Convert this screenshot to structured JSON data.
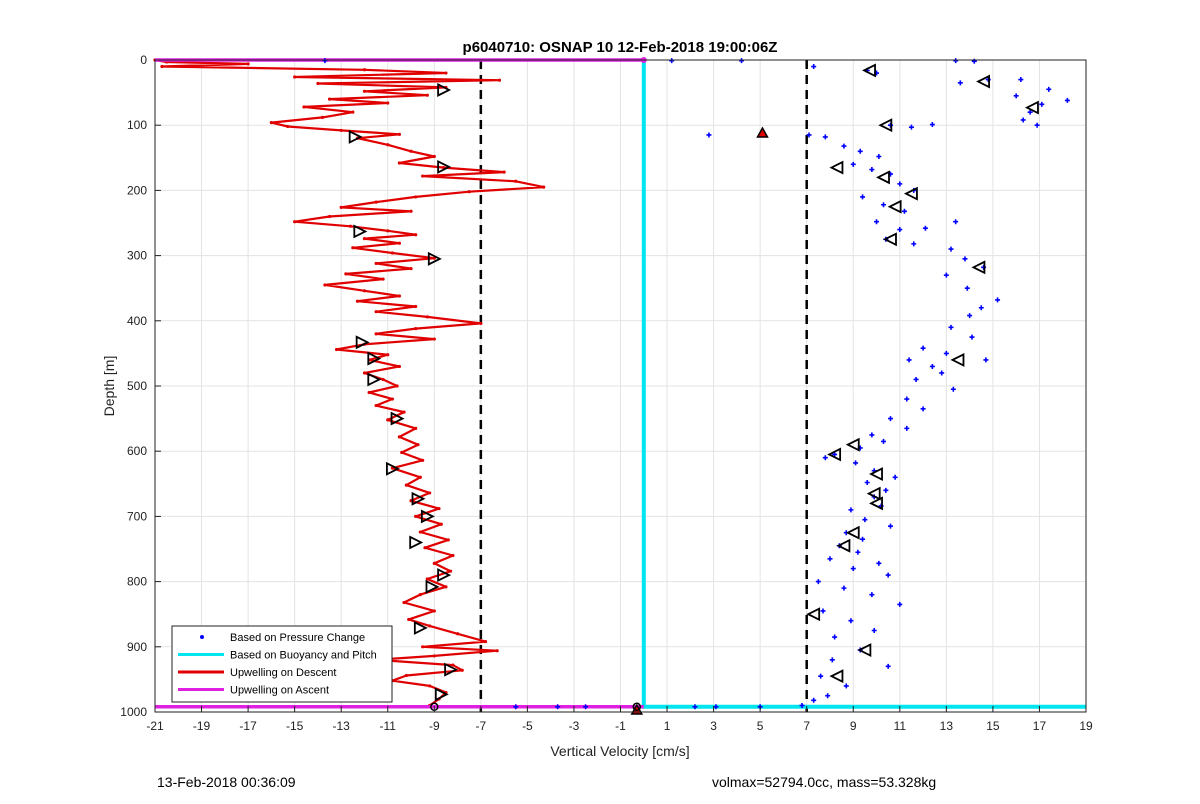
{
  "chart_data": {
    "type": "line",
    "title": "p6040710: OSNAP 10 12-Feb-2018 19:00:06Z",
    "xlabel": "Vertical Velocity [cm/s]",
    "ylabel": "Depth [m]",
    "xlim": [
      -21,
      19
    ],
    "ylim": [
      0,
      1000
    ],
    "y_reversed": true,
    "xticks": [
      -21,
      -19,
      -17,
      -15,
      -13,
      -11,
      -9,
      -7,
      -5,
      -3,
      -1,
      1,
      3,
      5,
      7,
      9,
      11,
      13,
      15,
      17,
      19
    ],
    "yticks": [
      0,
      100,
      200,
      300,
      400,
      500,
      600,
      700,
      800,
      900,
      1000
    ],
    "grid": true,
    "legend_position": "bottom-left",
    "reference_lines": [
      -7,
      7
    ],
    "series": [
      {
        "name": "Based on Pressure Change",
        "color": "#0000ff",
        "style": "dots",
        "points": [
          [
            -13.7,
            1
          ],
          [
            1.2,
            1
          ],
          [
            4.2,
            1
          ],
          [
            7.3,
            10
          ],
          [
            9.6,
            16
          ],
          [
            10.0,
            20
          ],
          [
            13.4,
            1
          ],
          [
            14.2,
            2
          ],
          [
            13.6,
            35
          ],
          [
            14.8,
            30
          ],
          [
            16.2,
            30
          ],
          [
            17.4,
            45
          ],
          [
            16.0,
            55
          ],
          [
            18.2,
            62
          ],
          [
            17.1,
            68
          ],
          [
            16.6,
            80
          ],
          [
            16.3,
            92
          ],
          [
            16.9,
            100
          ],
          [
            10.6,
            100
          ],
          [
            11.5,
            103
          ],
          [
            12.4,
            99
          ],
          [
            2.8,
            115
          ],
          [
            7.1,
            115
          ],
          [
            7.8,
            118
          ],
          [
            8.6,
            132
          ],
          [
            9.3,
            140
          ],
          [
            10.1,
            148
          ],
          [
            9.0,
            160
          ],
          [
            9.8,
            168
          ],
          [
            10.6,
            175
          ],
          [
            11.0,
            190
          ],
          [
            11.6,
            200
          ],
          [
            9.4,
            210
          ],
          [
            10.3,
            222
          ],
          [
            11.2,
            232
          ],
          [
            10.0,
            248
          ],
          [
            11.0,
            260
          ],
          [
            12.1,
            258
          ],
          [
            13.4,
            248
          ],
          [
            10.4,
            275
          ],
          [
            11.6,
            282
          ],
          [
            13.2,
            290
          ],
          [
            13.8,
            305
          ],
          [
            14.6,
            318
          ],
          [
            13.0,
            330
          ],
          [
            13.9,
            350
          ],
          [
            15.2,
            368
          ],
          [
            14.5,
            380
          ],
          [
            14.0,
            392
          ],
          [
            13.2,
            410
          ],
          [
            14.1,
            425
          ],
          [
            12.0,
            442
          ],
          [
            13.0,
            450
          ],
          [
            11.4,
            460
          ],
          [
            12.4,
            470
          ],
          [
            14.7,
            460
          ],
          [
            12.8,
            480
          ],
          [
            11.7,
            490
          ],
          [
            13.3,
            505
          ],
          [
            11.3,
            520
          ],
          [
            12.0,
            535
          ],
          [
            10.6,
            550
          ],
          [
            11.3,
            565
          ],
          [
            9.8,
            575
          ],
          [
            10.3,
            585
          ],
          [
            9.3,
            595
          ],
          [
            8.2,
            605
          ],
          [
            7.8,
            610
          ],
          [
            9.1,
            618
          ],
          [
            9.9,
            630
          ],
          [
            10.8,
            640
          ],
          [
            9.6,
            648
          ],
          [
            10.4,
            660
          ],
          [
            9.9,
            670
          ],
          [
            10.2,
            684
          ],
          [
            8.9,
            690
          ],
          [
            9.5,
            705
          ],
          [
            10.6,
            715
          ],
          [
            8.7,
            725
          ],
          [
            9.4,
            735
          ],
          [
            8.4,
            745
          ],
          [
            9.2,
            755
          ],
          [
            8.0,
            765
          ],
          [
            10.1,
            772
          ],
          [
            9.0,
            780
          ],
          [
            10.5,
            790
          ],
          [
            7.5,
            800
          ],
          [
            8.6,
            810
          ],
          [
            9.8,
            820
          ],
          [
            11.0,
            835
          ],
          [
            7.7,
            845
          ],
          [
            8.9,
            860
          ],
          [
            9.9,
            875
          ],
          [
            8.2,
            885
          ],
          [
            9.3,
            905
          ],
          [
            8.1,
            920
          ],
          [
            10.5,
            930
          ],
          [
            7.6,
            945
          ],
          [
            8.7,
            960
          ],
          [
            7.9,
            975
          ],
          [
            7.3,
            982
          ],
          [
            -5.5,
            992
          ],
          [
            -3.7,
            992
          ],
          [
            -2.5,
            992
          ],
          [
            2.2,
            992
          ],
          [
            3.1,
            992
          ],
          [
            5.0,
            992
          ],
          [
            6.8,
            990
          ]
        ]
      },
      {
        "name": "Based on Buoyancy and Pitch",
        "color": "#00e5ee",
        "style": "line",
        "points": [
          [
            0,
            0
          ],
          [
            0,
            992
          ],
          [
            19,
            992
          ]
        ]
      },
      {
        "name": "Upwelling on Descent",
        "color": "#e00000",
        "style": "line",
        "points": [
          [
            -21,
            0
          ],
          [
            -20.5,
            3
          ],
          [
            -17.0,
            6
          ],
          [
            -20.7,
            10
          ],
          [
            -12.0,
            15
          ],
          [
            -8.5,
            20
          ],
          [
            -15.0,
            26
          ],
          [
            -6.2,
            31
          ],
          [
            -14.0,
            36
          ],
          [
            -8.5,
            42
          ],
          [
            -12.0,
            48
          ],
          [
            -9.3,
            54
          ],
          [
            -13.5,
            60
          ],
          [
            -11.0,
            66
          ],
          [
            -14.6,
            72
          ],
          [
            -12.5,
            80
          ],
          [
            -13.8,
            88
          ],
          [
            -16.0,
            96
          ],
          [
            -15.3,
            102
          ],
          [
            -13.0,
            108
          ],
          [
            -10.5,
            114
          ],
          [
            -12.3,
            120
          ],
          [
            -11.0,
            130
          ],
          [
            -10.0,
            140
          ],
          [
            -9.0,
            148
          ],
          [
            -10.5,
            158
          ],
          [
            -8.6,
            165
          ],
          [
            -6.0,
            172
          ],
          [
            -9.5,
            178
          ],
          [
            -5.5,
            186
          ],
          [
            -4.3,
            195
          ],
          [
            -7.5,
            202
          ],
          [
            -9.8,
            210
          ],
          [
            -11.5,
            218
          ],
          [
            -13.0,
            226
          ],
          [
            -10.0,
            232
          ],
          [
            -13.5,
            240
          ],
          [
            -15.0,
            248
          ],
          [
            -12.6,
            255
          ],
          [
            -11.0,
            262
          ],
          [
            -9.8,
            268
          ],
          [
            -12.0,
            274
          ],
          [
            -10.5,
            281
          ],
          [
            -12.5,
            288
          ],
          [
            -10.8,
            296
          ],
          [
            -9.0,
            304
          ],
          [
            -11.5,
            312
          ],
          [
            -10.0,
            320
          ],
          [
            -12.8,
            328
          ],
          [
            -11.2,
            336
          ],
          [
            -13.7,
            345
          ],
          [
            -12.0,
            354
          ],
          [
            -10.5,
            362
          ],
          [
            -12.3,
            370
          ],
          [
            -9.8,
            378
          ],
          [
            -11.5,
            386
          ],
          [
            -9.3,
            394
          ],
          [
            -7.0,
            404
          ],
          [
            -9.8,
            412
          ],
          [
            -11.5,
            420
          ],
          [
            -9.0,
            428
          ],
          [
            -12.0,
            436
          ],
          [
            -13.2,
            444
          ],
          [
            -11.0,
            452
          ],
          [
            -11.8,
            460
          ],
          [
            -10.5,
            470
          ],
          [
            -12.0,
            480
          ],
          [
            -11.2,
            490
          ],
          [
            -10.6,
            500
          ],
          [
            -11.8,
            510
          ],
          [
            -10.8,
            520
          ],
          [
            -11.5,
            530
          ],
          [
            -10.3,
            540
          ],
          [
            -11.0,
            552
          ],
          [
            -9.8,
            565
          ],
          [
            -10.5,
            578
          ],
          [
            -9.7,
            590
          ],
          [
            -10.4,
            602
          ],
          [
            -9.5,
            614
          ],
          [
            -10.8,
            626
          ],
          [
            -9.6,
            640
          ],
          [
            -10.2,
            652
          ],
          [
            -9.2,
            664
          ],
          [
            -10.0,
            676
          ],
          [
            -8.8,
            688
          ],
          [
            -9.8,
            700
          ],
          [
            -8.7,
            712
          ],
          [
            -9.6,
            724
          ],
          [
            -8.4,
            736
          ],
          [
            -9.4,
            748
          ],
          [
            -8.2,
            760
          ],
          [
            -9.0,
            772
          ],
          [
            -8.3,
            784
          ],
          [
            -9.3,
            796
          ],
          [
            -8.5,
            808
          ],
          [
            -9.6,
            820
          ],
          [
            -10.3,
            832
          ],
          [
            -9.0,
            845
          ],
          [
            -10.1,
            858
          ],
          [
            -9.2,
            868
          ],
          [
            -8.0,
            880
          ],
          [
            -6.8,
            892
          ],
          [
            -9.5,
            900
          ],
          [
            -6.3,
            906
          ],
          [
            -9.0,
            914
          ],
          [
            -11.5,
            920
          ],
          [
            -8.2,
            928
          ],
          [
            -7.8,
            936
          ],
          [
            -10.2,
            944
          ],
          [
            -10.8,
            952
          ],
          [
            -9.2,
            960
          ],
          [
            -8.5,
            970
          ],
          [
            -8.8,
            980
          ],
          [
            -9.2,
            990
          ]
        ]
      },
      {
        "name": "Upwelling on Ascent",
        "color": "#e020e0",
        "style": "line",
        "points": [
          [
            -21,
            0
          ],
          [
            0,
            0
          ]
        ]
      }
    ],
    "ascent_markers": [
      [
        9.7,
        16
      ],
      [
        14.6,
        33
      ],
      [
        16.7,
        73
      ],
      [
        10.4,
        100
      ],
      [
        8.3,
        165
      ],
      [
        10.3,
        180
      ],
      [
        11.5,
        205
      ],
      [
        10.8,
        225
      ],
      [
        10.6,
        275
      ],
      [
        14.4,
        318
      ],
      [
        13.5,
        460
      ],
      [
        9.0,
        590
      ],
      [
        8.2,
        605
      ],
      [
        10.0,
        635
      ],
      [
        9.9,
        665
      ],
      [
        10.0,
        680
      ],
      [
        9.0,
        725
      ],
      [
        8.6,
        745
      ],
      [
        7.3,
        850
      ],
      [
        9.5,
        905
      ],
      [
        8.3,
        945
      ]
    ],
    "descent_markers": [
      [
        -8.6,
        46
      ],
      [
        -12.4,
        118
      ],
      [
        -8.6,
        164
      ],
      [
        -12.2,
        263
      ],
      [
        -9.0,
        305
      ],
      [
        -12.1,
        433
      ],
      [
        -11.6,
        458
      ],
      [
        -11.6,
        490
      ],
      [
        -10.6,
        550
      ],
      [
        -10.8,
        627
      ],
      [
        -9.7,
        673
      ],
      [
        -9.3,
        700
      ],
      [
        -9.8,
        740
      ],
      [
        -8.6,
        790
      ],
      [
        -9.1,
        808
      ],
      [
        -9.6,
        871
      ],
      [
        -8.3,
        935
      ],
      [
        -8.7,
        973
      ]
    ],
    "red_triangles": [
      [
        5.1,
        112
      ],
      [
        -0.3,
        997
      ]
    ],
    "dot_markers": [
      [
        -9.0,
        992
      ],
      [
        -0.3,
        992
      ]
    ]
  },
  "footer": {
    "left": "13-Feb-2018 00:36:09",
    "right": "volmax=52794.0cc, mass=53.328kg"
  }
}
